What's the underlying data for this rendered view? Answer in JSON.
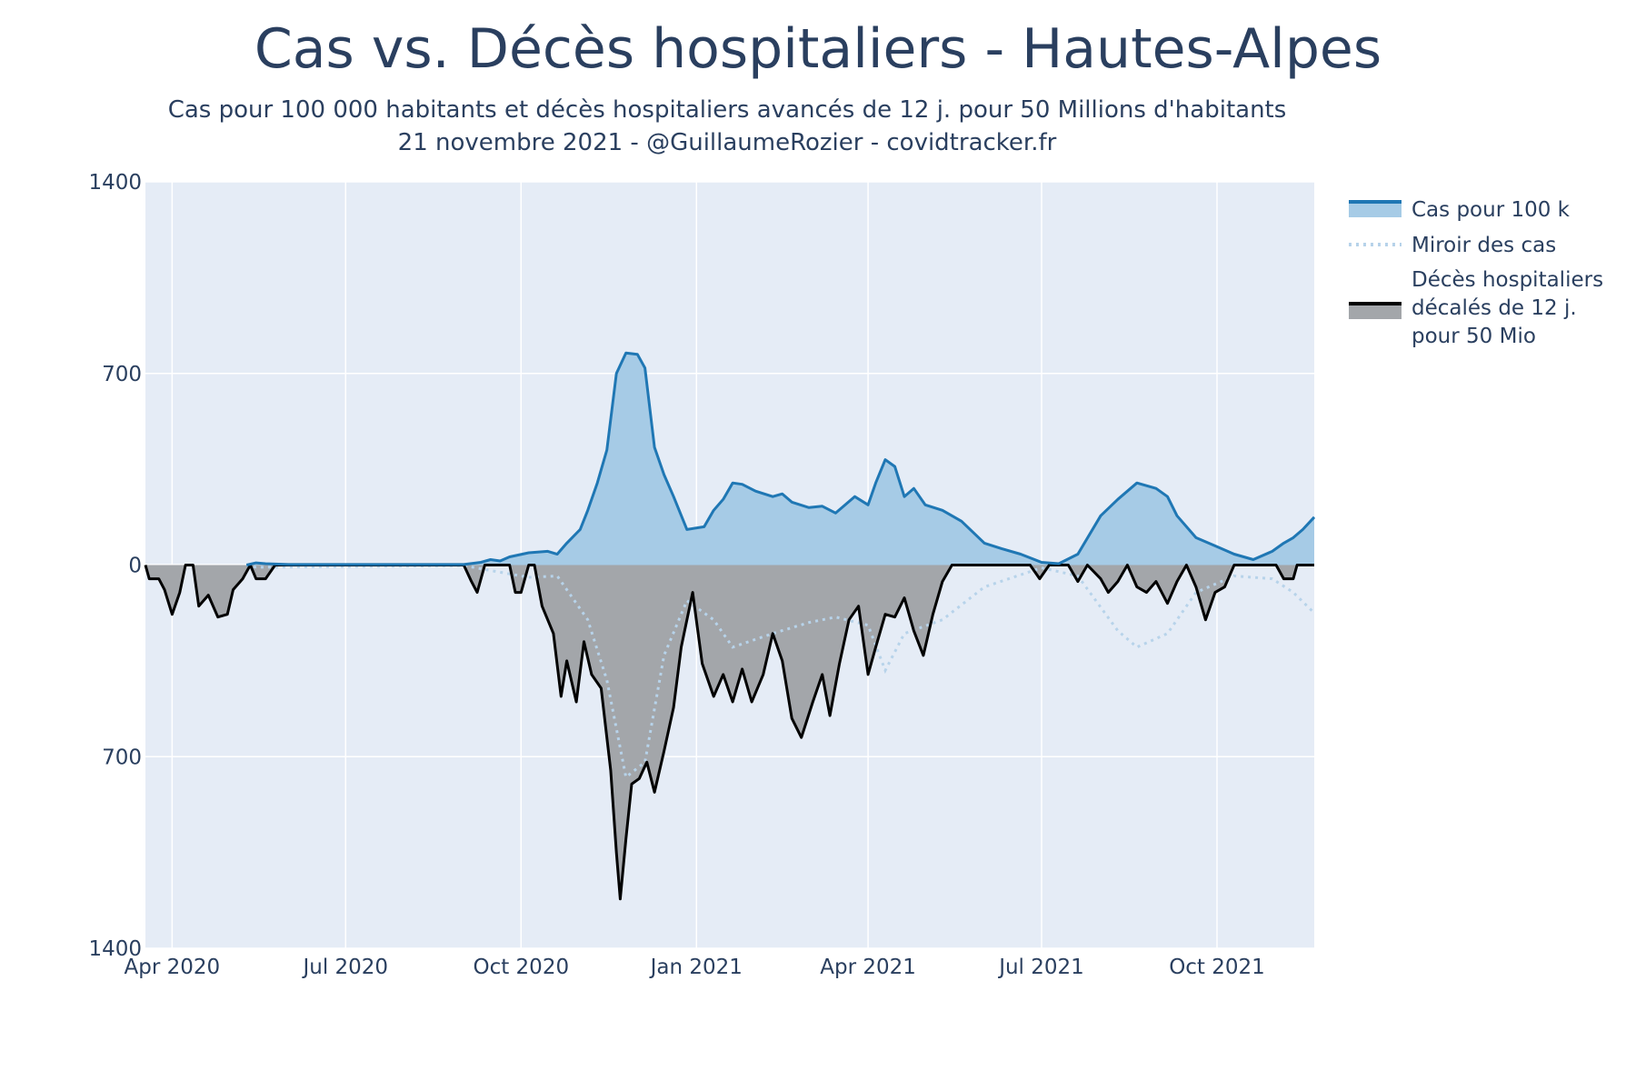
{
  "title": "Cas vs. Décès hospitaliers - Hautes-Alpes",
  "subtitle_line1": "Cas pour 100 000 habitants et décès hospitaliers avancés de 12 j. pour 50 Millions d'habitants",
  "subtitle_line2": "21 novembre 2021 - @GuillaumeRozier - covidtracker.fr",
  "colors": {
    "plot_bg": "#e5ecf6",
    "cases_line": "#1f77b4",
    "cases_fill": "#a6cbe6",
    "deaths_line": "#000000",
    "deaths_fill": "#a3a6aa",
    "mirror_line": "#b7d3ea"
  },
  "chart_data": {
    "type": "area",
    "x_range": [
      "2020-03-18",
      "2021-11-21"
    ],
    "y_range": [
      -1400,
      1400
    ],
    "y_tick_labels": [
      "1400",
      "700",
      "0",
      "700",
      "1400"
    ],
    "x_tick_labels": [
      "Apr 2020",
      "Jul 2020",
      "Oct 2020",
      "Jan 2021",
      "Apr 2021",
      "Jul 2021",
      "Oct 2021"
    ],
    "legend_position": "top-right",
    "grid": true,
    "series": [
      {
        "name": "Cas pour 100 k",
        "style": "solid line with fill to zero",
        "points": [
          [
            "2020-05-10",
            0
          ],
          [
            "2020-05-15",
            8
          ],
          [
            "2020-05-20",
            5
          ],
          [
            "2020-06-01",
            2
          ],
          [
            "2020-09-01",
            2
          ],
          [
            "2020-09-10",
            10
          ],
          [
            "2020-09-15",
            20
          ],
          [
            "2020-09-20",
            15
          ],
          [
            "2020-09-25",
            30
          ],
          [
            "2020-10-05",
            45
          ],
          [
            "2020-10-15",
            50
          ],
          [
            "2020-10-20",
            40
          ],
          [
            "2020-10-25",
            80
          ],
          [
            "2020-11-01",
            130
          ],
          [
            "2020-11-05",
            200
          ],
          [
            "2020-11-10",
            300
          ],
          [
            "2020-11-15",
            420
          ],
          [
            "2020-11-20",
            700
          ],
          [
            "2020-11-25",
            775
          ],
          [
            "2020-12-01",
            770
          ],
          [
            "2020-12-05",
            720
          ],
          [
            "2020-12-10",
            430
          ],
          [
            "2020-12-15",
            330
          ],
          [
            "2020-12-20",
            250
          ],
          [
            "2020-12-27",
            130
          ],
          [
            "2021-01-05",
            140
          ],
          [
            "2021-01-10",
            200
          ],
          [
            "2021-01-15",
            240
          ],
          [
            "2021-01-20",
            300
          ],
          [
            "2021-01-25",
            295
          ],
          [
            "2021-02-01",
            270
          ],
          [
            "2021-02-10",
            250
          ],
          [
            "2021-02-15",
            260
          ],
          [
            "2021-02-20",
            230
          ],
          [
            "2021-03-01",
            210
          ],
          [
            "2021-03-08",
            215
          ],
          [
            "2021-03-15",
            190
          ],
          [
            "2021-03-25",
            250
          ],
          [
            "2021-04-01",
            220
          ],
          [
            "2021-04-05",
            300
          ],
          [
            "2021-04-10",
            385
          ],
          [
            "2021-04-15",
            360
          ],
          [
            "2021-04-20",
            250
          ],
          [
            "2021-04-25",
            280
          ],
          [
            "2021-05-01",
            220
          ],
          [
            "2021-05-10",
            200
          ],
          [
            "2021-05-20",
            160
          ],
          [
            "2021-06-01",
            80
          ],
          [
            "2021-06-10",
            60
          ],
          [
            "2021-06-20",
            40
          ],
          [
            "2021-07-01",
            10
          ],
          [
            "2021-07-10",
            5
          ],
          [
            "2021-07-20",
            40
          ],
          [
            "2021-08-01",
            180
          ],
          [
            "2021-08-10",
            240
          ],
          [
            "2021-08-20",
            300
          ],
          [
            "2021-08-30",
            280
          ],
          [
            "2021-09-05",
            250
          ],
          [
            "2021-09-10",
            180
          ],
          [
            "2021-09-20",
            100
          ],
          [
            "2021-09-30",
            70
          ],
          [
            "2021-10-10",
            40
          ],
          [
            "2021-10-20",
            20
          ],
          [
            "2021-10-30",
            50
          ],
          [
            "2021-11-05",
            80
          ],
          [
            "2021-11-10",
            100
          ],
          [
            "2021-11-15",
            130
          ],
          [
            "2021-11-21",
            175
          ]
        ]
      },
      {
        "name": "Miroir des cas",
        "style": "dotted line",
        "points": [
          [
            "2020-05-10",
            0
          ],
          [
            "2020-05-15",
            -8
          ],
          [
            "2020-09-01",
            -2
          ],
          [
            "2020-09-15",
            -20
          ],
          [
            "2020-10-05",
            -45
          ],
          [
            "2020-10-20",
            -40
          ],
          [
            "2020-11-05",
            -200
          ],
          [
            "2020-11-15",
            -420
          ],
          [
            "2020-11-25",
            -775
          ],
          [
            "2020-12-05",
            -720
          ],
          [
            "2020-12-15",
            -330
          ],
          [
            "2020-12-27",
            -130
          ],
          [
            "2021-01-10",
            -200
          ],
          [
            "2021-01-20",
            -300
          ],
          [
            "2021-02-10",
            -250
          ],
          [
            "2021-03-01",
            -210
          ],
          [
            "2021-03-15",
            -190
          ],
          [
            "2021-04-01",
            -220
          ],
          [
            "2021-04-10",
            -385
          ],
          [
            "2021-04-20",
            -250
          ],
          [
            "2021-05-10",
            -200
          ],
          [
            "2021-06-01",
            -80
          ],
          [
            "2021-07-01",
            -10
          ],
          [
            "2021-07-20",
            -40
          ],
          [
            "2021-08-10",
            -240
          ],
          [
            "2021-08-20",
            -300
          ],
          [
            "2021-09-05",
            -250
          ],
          [
            "2021-09-20",
            -100
          ],
          [
            "2021-10-10",
            -40
          ],
          [
            "2021-10-30",
            -50
          ],
          [
            "2021-11-10",
            -100
          ],
          [
            "2021-11-21",
            -175
          ]
        ]
      },
      {
        "name": "Décès hospitaliers décalés de 12 j. pour 50 Mio",
        "style": "solid black line with grey fill to zero",
        "points": [
          [
            "2020-03-18",
            0
          ],
          [
            "2020-03-20",
            -50
          ],
          [
            "2020-03-25",
            -50
          ],
          [
            "2020-03-28",
            -90
          ],
          [
            "2020-04-01",
            -180
          ],
          [
            "2020-04-05",
            -100
          ],
          [
            "2020-04-08",
            0
          ],
          [
            "2020-04-12",
            0
          ],
          [
            "2020-04-15",
            -150
          ],
          [
            "2020-04-20",
            -110
          ],
          [
            "2020-04-25",
            -190
          ],
          [
            "2020-04-30",
            -180
          ],
          [
            "2020-05-03",
            -90
          ],
          [
            "2020-05-08",
            -50
          ],
          [
            "2020-05-12",
            0
          ],
          [
            "2020-05-15",
            -50
          ],
          [
            "2020-05-20",
            -50
          ],
          [
            "2020-05-25",
            0
          ],
          [
            "2020-09-01",
            0
          ],
          [
            "2020-09-05",
            -60
          ],
          [
            "2020-09-08",
            -100
          ],
          [
            "2020-09-12",
            0
          ],
          [
            "2020-09-25",
            0
          ],
          [
            "2020-09-28",
            -100
          ],
          [
            "2020-10-01",
            -100
          ],
          [
            "2020-10-05",
            0
          ],
          [
            "2020-10-08",
            0
          ],
          [
            "2020-10-12",
            -150
          ],
          [
            "2020-10-18",
            -250
          ],
          [
            "2020-10-22",
            -480
          ],
          [
            "2020-10-25",
            -350
          ],
          [
            "2020-10-30",
            -500
          ],
          [
            "2020-11-03",
            -280
          ],
          [
            "2020-11-07",
            -400
          ],
          [
            "2020-11-12",
            -450
          ],
          [
            "2020-11-17",
            -750
          ],
          [
            "2020-11-20",
            -1050
          ],
          [
            "2020-11-22",
            -1220
          ],
          [
            "2020-11-25",
            -1000
          ],
          [
            "2020-11-28",
            -800
          ],
          [
            "2020-12-02",
            -780
          ],
          [
            "2020-12-06",
            -720
          ],
          [
            "2020-12-10",
            -830
          ],
          [
            "2020-12-15",
            -680
          ],
          [
            "2020-12-20",
            -520
          ],
          [
            "2020-12-24",
            -300
          ],
          [
            "2020-12-30",
            -100
          ],
          [
            "2021-01-04",
            -360
          ],
          [
            "2021-01-10",
            -480
          ],
          [
            "2021-01-15",
            -400
          ],
          [
            "2021-01-20",
            -500
          ],
          [
            "2021-01-25",
            -380
          ],
          [
            "2021-01-30",
            -500
          ],
          [
            "2021-02-05",
            -400
          ],
          [
            "2021-02-10",
            -250
          ],
          [
            "2021-02-15",
            -350
          ],
          [
            "2021-02-20",
            -560
          ],
          [
            "2021-02-25",
            -630
          ],
          [
            "2021-03-03",
            -500
          ],
          [
            "2021-03-08",
            -400
          ],
          [
            "2021-03-12",
            -550
          ],
          [
            "2021-03-17",
            -360
          ],
          [
            "2021-03-22",
            -200
          ],
          [
            "2021-03-27",
            -150
          ],
          [
            "2021-04-01",
            -400
          ],
          [
            "2021-04-05",
            -300
          ],
          [
            "2021-04-10",
            -180
          ],
          [
            "2021-04-15",
            -190
          ],
          [
            "2021-04-20",
            -120
          ],
          [
            "2021-04-25",
            -240
          ],
          [
            "2021-04-30",
            -330
          ],
          [
            "2021-05-05",
            -180
          ],
          [
            "2021-05-10",
            -60
          ],
          [
            "2021-05-15",
            0
          ],
          [
            "2021-06-25",
            0
          ],
          [
            "2021-06-30",
            -50
          ],
          [
            "2021-07-05",
            0
          ],
          [
            "2021-07-15",
            0
          ],
          [
            "2021-07-20",
            -60
          ],
          [
            "2021-07-25",
            0
          ],
          [
            "2021-08-01",
            -50
          ],
          [
            "2021-08-05",
            -100
          ],
          [
            "2021-08-10",
            -60
          ],
          [
            "2021-08-15",
            0
          ],
          [
            "2021-08-20",
            -80
          ],
          [
            "2021-08-25",
            -100
          ],
          [
            "2021-08-30",
            -60
          ],
          [
            "2021-09-05",
            -140
          ],
          [
            "2021-09-10",
            -60
          ],
          [
            "2021-09-15",
            0
          ],
          [
            "2021-09-20",
            -80
          ],
          [
            "2021-09-25",
            -200
          ],
          [
            "2021-09-30",
            -100
          ],
          [
            "2021-10-05",
            -80
          ],
          [
            "2021-10-10",
            0
          ],
          [
            "2021-11-01",
            0
          ],
          [
            "2021-11-05",
            -50
          ],
          [
            "2021-11-10",
            -50
          ],
          [
            "2021-11-12",
            0
          ],
          [
            "2021-11-21",
            0
          ]
        ]
      }
    ],
    "legend": [
      {
        "lines": [
          "Cas pour 100 k"
        ]
      },
      {
        "lines": [
          "Miroir des cas"
        ]
      },
      {
        "lines": [
          "Décès hospitaliers",
          "décalés de 12 j.",
          "pour 50 Mio"
        ]
      }
    ]
  }
}
